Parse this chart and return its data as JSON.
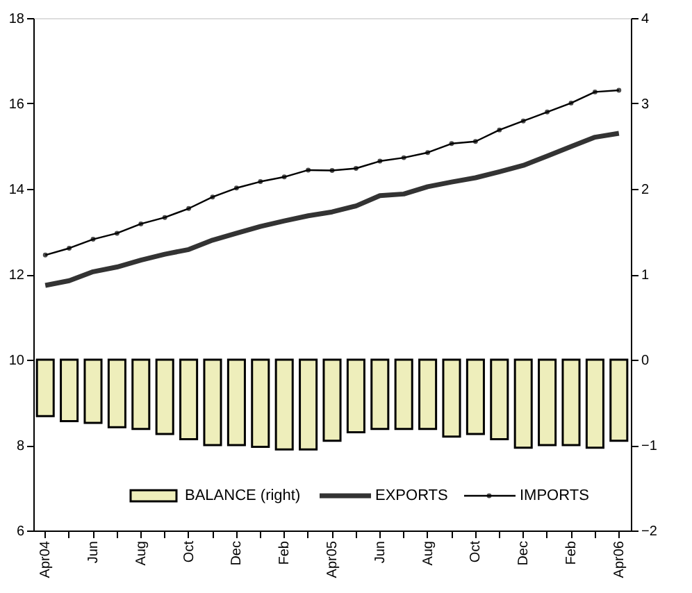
{
  "chart_data": {
    "type": "bar",
    "categories": [
      "Apr04",
      null,
      "Jun",
      null,
      "Aug",
      null,
      "Oct",
      null,
      "Dec",
      null,
      "Feb",
      null,
      "Apr05",
      null,
      "Jun",
      null,
      "Aug",
      null,
      "Oct",
      null,
      "Dec",
      null,
      "Feb",
      null,
      "Apr06"
    ],
    "series": [
      {
        "name": "BALANCE (right)",
        "axis": "y2",
        "color": "#eeeebb",
        "values": [
          -0.66,
          -0.72,
          -0.74,
          -0.79,
          -0.81,
          -0.87,
          -0.93,
          -1.0,
          -1.0,
          -1.02,
          -1.05,
          -1.05,
          -0.95,
          -0.85,
          -0.81,
          -0.81,
          -0.81,
          -0.9,
          -0.87,
          -0.93,
          -1.03,
          -1.0,
          -1.0,
          -1.03,
          -0.95
        ]
      },
      {
        "name": "EXPORTS",
        "type": "line",
        "color": "#333333",
        "marker": "none",
        "values": [
          11.74,
          11.85,
          12.06,
          12.17,
          12.33,
          12.47,
          12.58,
          12.8,
          12.96,
          13.12,
          13.25,
          13.37,
          13.46,
          13.6,
          13.84,
          13.88,
          14.05,
          14.16,
          14.26,
          14.4,
          14.55,
          14.77,
          14.99,
          15.21,
          15.3
        ]
      },
      {
        "name": "IMPORTS",
        "type": "line",
        "color": "#000000",
        "marker": "circle",
        "values": [
          12.45,
          12.61,
          12.82,
          12.96,
          13.18,
          13.33,
          13.54,
          13.81,
          14.02,
          14.17,
          14.28,
          14.44,
          14.43,
          14.48,
          14.65,
          14.73,
          14.85,
          15.06,
          15.11,
          15.38,
          15.59,
          15.8,
          16.01,
          16.27,
          16.31
        ]
      }
    ],
    "ylim": [
      6,
      18
    ],
    "yticks": [
      6,
      8,
      10,
      12,
      14,
      16,
      18
    ],
    "y2lim": [
      -2,
      4
    ],
    "y2ticks": [
      -2,
      -1,
      0,
      1,
      2,
      3,
      4
    ],
    "grid": false,
    "legend": "bottom",
    "line_style": "solid"
  }
}
